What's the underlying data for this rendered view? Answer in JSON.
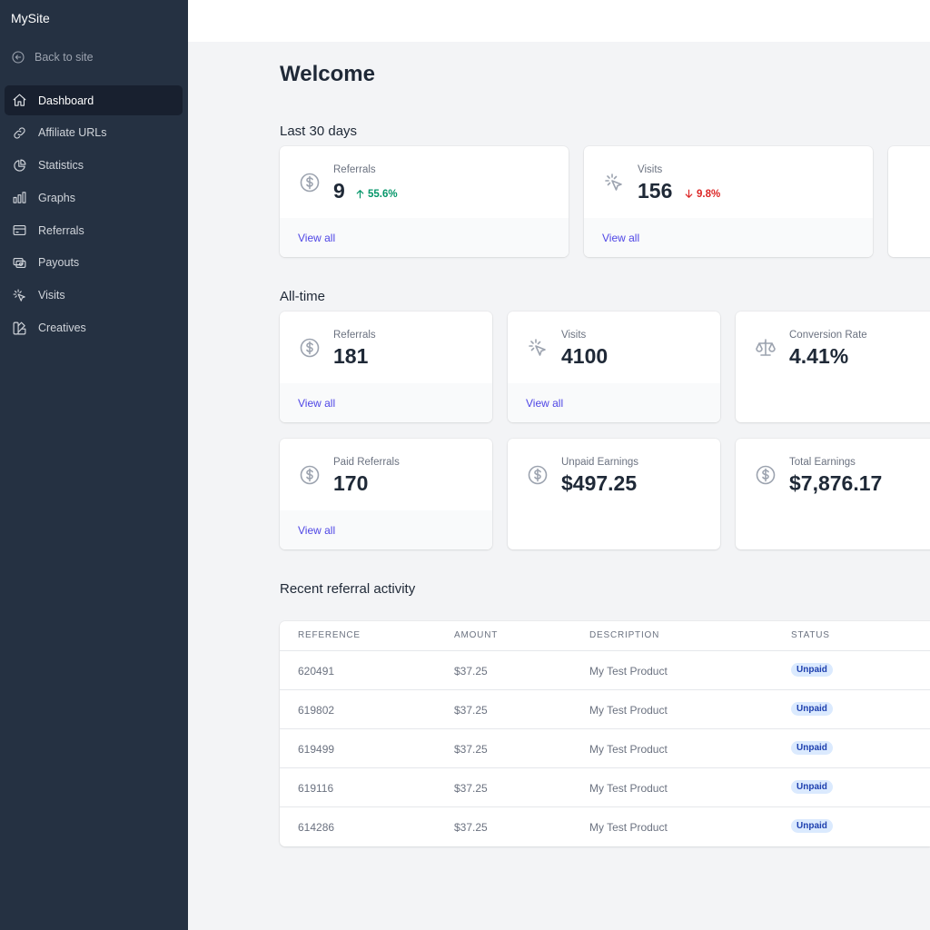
{
  "sidebar": {
    "brand": "MySite",
    "back_label": "Back to site",
    "items": [
      {
        "label": "Dashboard",
        "icon": "home-icon",
        "active": true
      },
      {
        "label": "Affiliate URLs",
        "icon": "link-icon"
      },
      {
        "label": "Statistics",
        "icon": "pie-chart-icon"
      },
      {
        "label": "Graphs",
        "icon": "bar-chart-icon"
      },
      {
        "label": "Referrals",
        "icon": "credit-card-icon"
      },
      {
        "label": "Payouts",
        "icon": "cash-icon"
      },
      {
        "label": "Visits",
        "icon": "cursor-click-icon"
      },
      {
        "label": "Creatives",
        "icon": "color-swatch-icon"
      }
    ]
  },
  "main": {
    "title": "Welcome",
    "last30": {
      "heading": "Last 30 days",
      "cards": [
        {
          "label": "Referrals",
          "value": "9",
          "change": "55.6%",
          "trend": "up",
          "link": "View all",
          "icon": "dollar-circle-icon"
        },
        {
          "label": "Visits",
          "value": "156",
          "change": "9.8%",
          "trend": "down",
          "link": "View all",
          "icon": "cursor-click-icon"
        }
      ]
    },
    "alltime": {
      "heading": "All-time",
      "cards": [
        {
          "label": "Referrals",
          "value": "181",
          "link": "View all",
          "icon": "dollar-circle-icon"
        },
        {
          "label": "Visits",
          "value": "4100",
          "link": "View all",
          "icon": "cursor-click-icon"
        },
        {
          "label": "Conversion Rate",
          "value": "4.41%",
          "icon": "scale-icon"
        },
        {
          "label": "Paid Referrals",
          "value": "170",
          "link": "View all",
          "icon": "dollar-circle-icon"
        },
        {
          "label": "Unpaid Earnings",
          "value": "$497.25",
          "icon": "dollar-circle-icon"
        },
        {
          "label": "Total Earnings",
          "value": "$7,876.17",
          "icon": "dollar-circle-icon"
        }
      ]
    },
    "recent": {
      "heading": "Recent referral activity",
      "columns": [
        "REFERENCE",
        "AMOUNT",
        "DESCRIPTION",
        "STATUS"
      ],
      "rows": [
        {
          "reference": "620491",
          "amount": "$37.25",
          "description": "My Test Product",
          "status": "Unpaid"
        },
        {
          "reference": "619802",
          "amount": "$37.25",
          "description": "My Test Product",
          "status": "Unpaid"
        },
        {
          "reference": "619499",
          "amount": "$37.25",
          "description": "My Test Product",
          "status": "Unpaid"
        },
        {
          "reference": "619116",
          "amount": "$37.25",
          "description": "My Test Product",
          "status": "Unpaid"
        },
        {
          "reference": "614286",
          "amount": "$37.25",
          "description": "My Test Product",
          "status": "Unpaid"
        }
      ]
    }
  },
  "colors": {
    "sidebar_bg": "#253142",
    "active_bg": "#18202f",
    "link": "#4f46e5",
    "up": "#059669",
    "down": "#dc2626",
    "badge_bg": "#dbeafe",
    "badge_text": "#1e40af"
  }
}
